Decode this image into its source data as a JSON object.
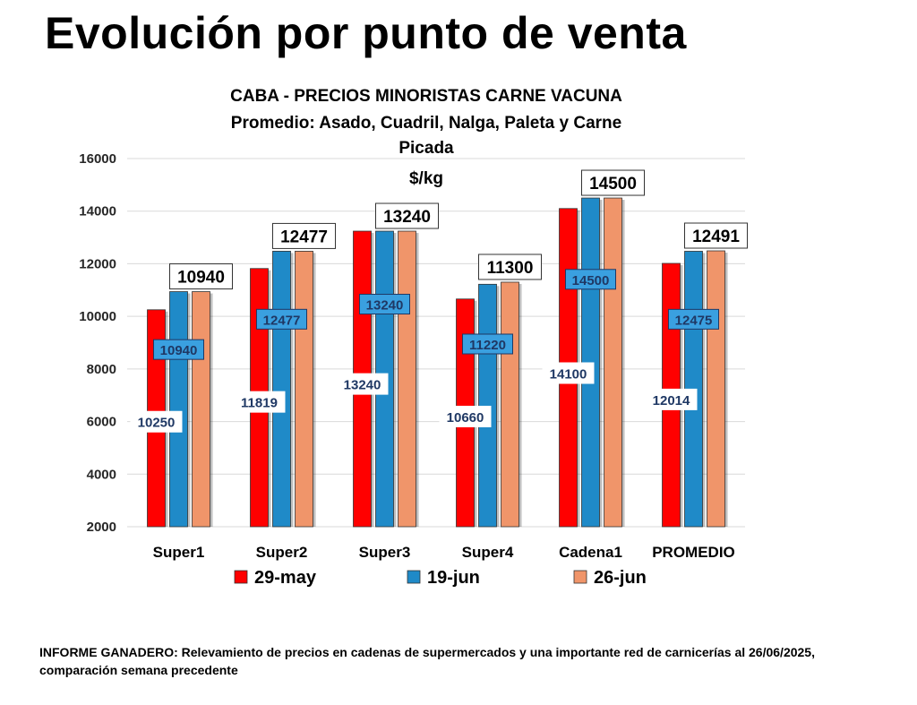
{
  "headline": "Evolución por punto de venta",
  "footnote": "INFORME GANADERO: Relevamiento de precios en cadenas de supermercados y una importante red de carnicerías al 26/06/2025, comparación semana precedente",
  "chart_data": {
    "type": "bar",
    "title_lines": [
      "CABA -  PRECIOS MINORISTAS CARNE VACUNA",
      "Promedio: Asado, Cuadril, Nalga, Paleta y Carne",
      "Picada",
      "$/kg"
    ],
    "categories": [
      "Super1",
      "Super2",
      "Super3",
      "Super4",
      "Cadena1",
      "PROMEDIO"
    ],
    "series": [
      {
        "name": "29-may",
        "color": "#ff0000",
        "values": [
          10250,
          11819,
          13240,
          10660,
          14100,
          12014
        ]
      },
      {
        "name": "19-jun",
        "color": "#1f8ac8",
        "values": [
          10940,
          12477,
          13240,
          11220,
          14500,
          12475
        ]
      },
      {
        "name": "26-jun",
        "color": "#f0956a",
        "values": [
          10940,
          12477,
          13240,
          11300,
          14500,
          12491
        ]
      }
    ],
    "ylim": [
      2000,
      16000
    ],
    "yticks": [
      "16000",
      "14000",
      "12000",
      "10000",
      "8000",
      "6000",
      "4000",
      "2000"
    ],
    "grid": true,
    "legend_position": "bottom"
  }
}
